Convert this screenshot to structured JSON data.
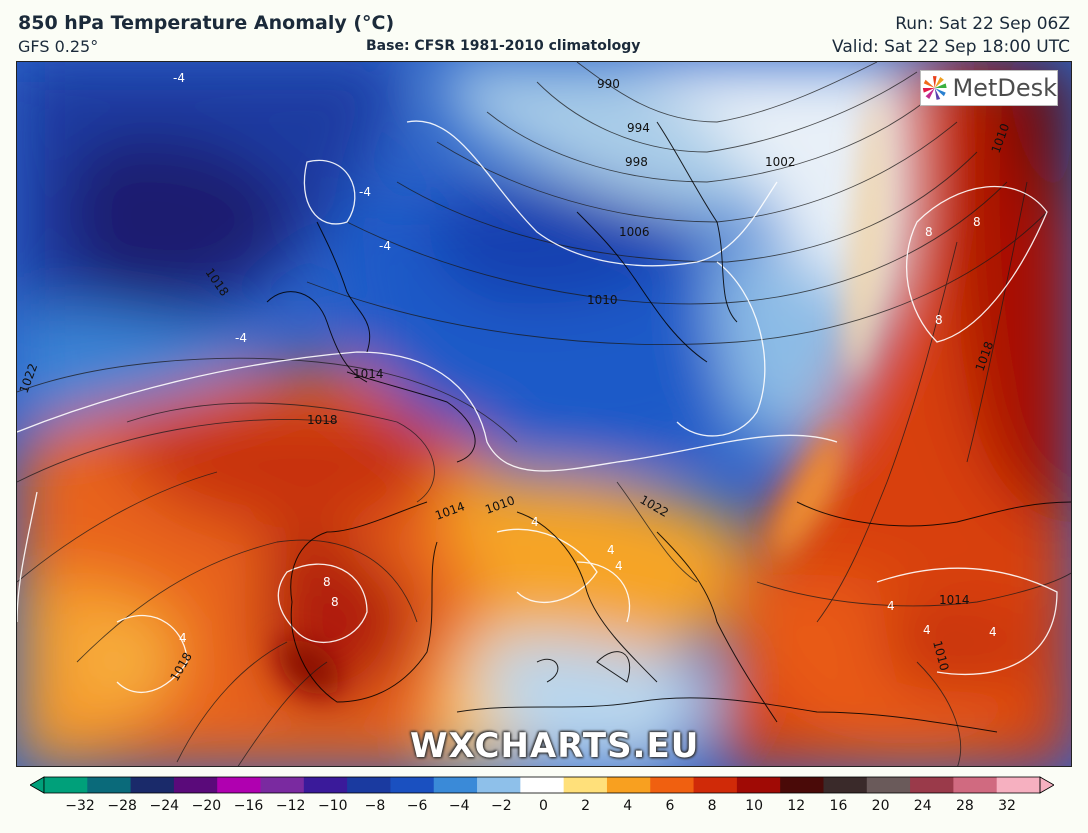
{
  "header": {
    "title": "850 hPa Temperature Anomaly (°C)",
    "model": "GFS 0.25°",
    "base": "Base: CFSR 1981-2010 climatology",
    "run": "Run: Sat 22 Sep 06Z",
    "valid": "Valid: Sat 22 Sep 18:00 UTC"
  },
  "logo": {
    "text": "MetDesk",
    "icon": "metdesk-logo-icon"
  },
  "watermark": "WXCHARTS.EU",
  "map": {
    "isobars": [
      "990",
      "994",
      "998",
      "1002",
      "1006",
      "1010",
      "1014",
      "1018",
      "1022",
      "1018",
      "1014",
      "1010",
      "1022",
      "1018",
      "1014",
      "1010",
      "1018",
      "1010"
    ],
    "anomaly_labels": [
      "-4",
      "-4",
      "-4",
      "-4",
      "8",
      "8",
      "8",
      "8",
      "8",
      "4",
      "4",
      "4",
      "4",
      "4",
      "4",
      "4"
    ]
  },
  "colorbar": {
    "ticks": [
      "−32",
      "−28",
      "−24",
      "−20",
      "−16",
      "−12",
      "−10",
      "−8",
      "−6",
      "−4",
      "−2",
      "0",
      "2",
      "4",
      "6",
      "8",
      "10",
      "12",
      "16",
      "20",
      "24",
      "28",
      "32"
    ],
    "colors": [
      "#00a07a",
      "#0a6a7a",
      "#1a2a6a",
      "#5a0a7a",
      "#b000b0",
      "#7a2aa0",
      "#3a1a9a",
      "#1a3aa0",
      "#1a50c0",
      "#3a8ad8",
      "#8ec0ea",
      "#ffffff",
      "#ffe07a",
      "#f8a020",
      "#f06010",
      "#d02a08",
      "#a00a05",
      "#4a0a08",
      "#3a2a2a",
      "#6a5a5a",
      "#9a3a4a",
      "#d06a80",
      "#f6b0c0"
    ]
  }
}
